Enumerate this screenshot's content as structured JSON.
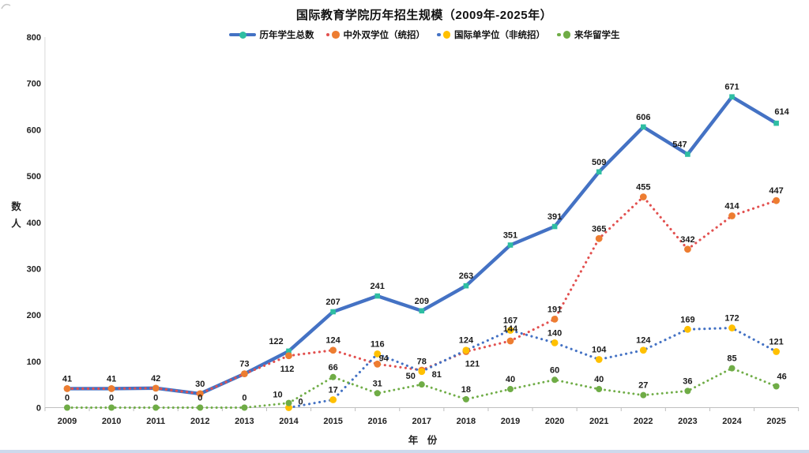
{
  "window": {
    "background": "#ffffff",
    "bottom_edge_color": "#cdd9ec"
  },
  "chart_data": {
    "type": "line",
    "title": "国际教育学院历年招生规模（2009年-2025年）",
    "xlabel": "年 份",
    "ylabel": "人数",
    "ylim": [
      0,
      800
    ],
    "y_ticks": [
      "0",
      "100",
      "200",
      "300",
      "400",
      "500",
      "600",
      "700",
      "800"
    ],
    "grid": false,
    "legend_position": "top-center",
    "categories": [
      "2009",
      "2010",
      "2011",
      "2012",
      "2013",
      "2014",
      "2015",
      "2016",
      "2017",
      "2018",
      "2019",
      "2020",
      "2021",
      "2022",
      "2023",
      "2024",
      "2025"
    ],
    "series": [
      {
        "name": "历年学生总数",
        "style": "solid",
        "marker": "square",
        "line_color": "#4472C4",
        "marker_color": "#2EBEA2",
        "values": [
          41,
          41,
          42,
          30,
          73,
          122,
          207,
          241,
          209,
          263,
          351,
          391,
          509,
          606,
          547,
          671,
          614
        ]
      },
      {
        "name": "中外双学位（统招）",
        "style": "dotted",
        "marker": "circle",
        "line_color": "#E2504F",
        "marker_color": "#ED7D31",
        "values": [
          41,
          41,
          42,
          30,
          73,
          112,
          124,
          94,
          81,
          121,
          144,
          191,
          365,
          455,
          342,
          414,
          447
        ]
      },
      {
        "name": "国际单学位（非统招）",
        "style": "dotted",
        "marker": "circle",
        "line_color": "#4472C4",
        "marker_color": "#FFC000",
        "values": [
          null,
          null,
          null,
          null,
          null,
          0,
          17,
          116,
          78,
          124,
          167,
          140,
          104,
          124,
          169,
          172,
          121
        ]
      },
      {
        "name": "来华留学生",
        "style": "dotted",
        "marker": "circle",
        "line_color": "#70AD47",
        "marker_color": "#6FAC46",
        "values": [
          0,
          0,
          0,
          0,
          0,
          10,
          66,
          31,
          50,
          18,
          40,
          60,
          40,
          27,
          36,
          85,
          46
        ]
      }
    ],
    "label_layout": {
      "0": {
        "5": {
          "dx": -16
        },
        "14": {
          "dx": -10
        },
        "16": {
          "dx": 7,
          "dy": -11
        }
      },
      "1": {
        "hidden": [
          0,
          1,
          2,
          3,
          4
        ],
        "5": {
          "dx": -2,
          "dy": 20
        },
        "7": {
          "dx": 8,
          "dy": -4
        },
        "8": {
          "dx": 19,
          "dy": 9
        },
        "9": {
          "dx": 8,
          "dy": 19
        },
        "10": {
          "dy": -12
        }
      },
      "2": {
        "5": {
          "dx": 15,
          "dy": -4
        }
      },
      "3": {
        "5": {
          "dx": -14,
          "dy": -7
        },
        "8": {
          "dx": -14,
          "dy": -7
        },
        "16": {
          "dx": 7
        }
      }
    }
  }
}
